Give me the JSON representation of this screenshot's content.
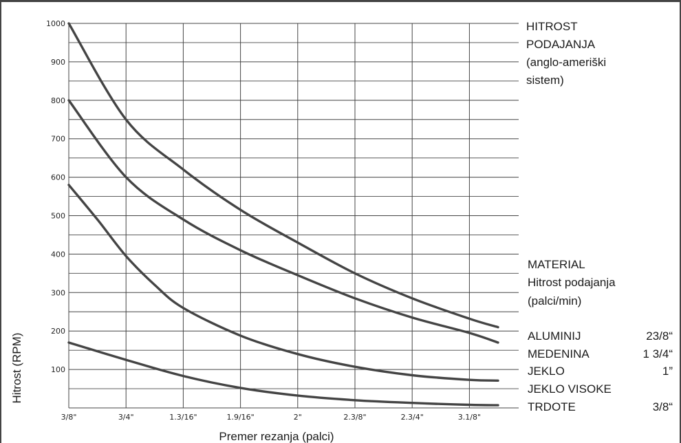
{
  "chart_data": {
    "type": "line",
    "xlabel": "Premer rezanja (palci)",
    "ylabel": "Hitrost (RPM)",
    "x_tick_labels": [
      "3/8\"",
      "3/4\"",
      "1.3/16\"",
      "1.9/16\"",
      "2\"",
      "2.3/8\"",
      "2.3/4\"",
      "3.1/8\""
    ],
    "y_tick_labels": [
      "100",
      "200",
      "300",
      "400",
      "500",
      "600",
      "700",
      "800",
      "900",
      "1000"
    ],
    "ylim": [
      0,
      1000
    ],
    "grid": true,
    "series": [
      {
        "x": [
          0,
          1,
          2,
          3,
          4,
          5,
          6,
          7,
          7.5
        ],
        "y": [
          1000,
          750,
          620,
          515,
          430,
          350,
          285,
          232,
          210
        ]
      },
      {
        "x": [
          0,
          1,
          2,
          3,
          4,
          5,
          6,
          7,
          7.5
        ],
        "y": [
          800,
          600,
          490,
          410,
          345,
          285,
          235,
          195,
          170
        ]
      },
      {
        "x": [
          0,
          0.5,
          1,
          1.5,
          2,
          3,
          4,
          5,
          6,
          7,
          7.5
        ],
        "y": [
          580,
          490,
          395,
          320,
          260,
          188,
          140,
          107,
          85,
          73,
          71
        ]
      },
      {
        "x": [
          0,
          1,
          2,
          3,
          4,
          5,
          6,
          7,
          7.5
        ],
        "y": [
          170,
          125,
          83,
          52,
          32,
          20,
          13,
          8,
          7
        ]
      }
    ],
    "extra_gridlines": [
      150,
      250,
      350,
      850,
      950
    ]
  },
  "legend": {
    "feed_title_lines": [
      "HITROST",
      "PODAJANJA",
      "(anglo-ameriški",
      "sistem)"
    ],
    "material_lines": [
      "MATERIAL",
      "Hitrost podajanja",
      "(palci/min)"
    ],
    "materials": [
      {
        "name": "ALUMINIJ",
        "value": "23/8“"
      },
      {
        "name": "MEDENINA",
        "value": "1 3/4“"
      },
      {
        "name": "JEKLO",
        "value": "1”"
      },
      {
        "name": "JEKLO VISOKE",
        "value": ""
      },
      {
        "name": "TRDOTE",
        "value": "3/8“"
      }
    ]
  }
}
